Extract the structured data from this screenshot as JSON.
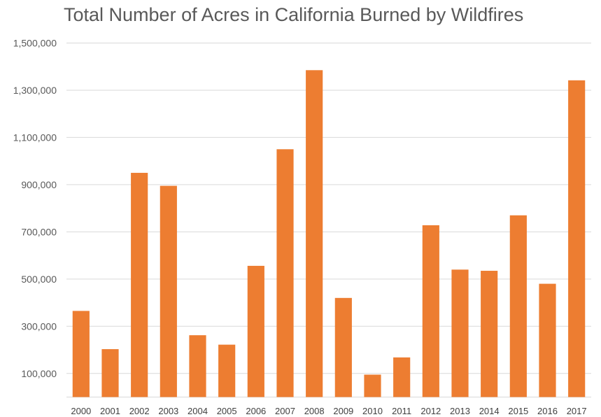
{
  "chart_data": {
    "type": "bar",
    "title": "Total Number of Acres in California Burned by Wildfires",
    "xlabel": "",
    "ylabel": "",
    "ylim": [
      0,
      1500000
    ],
    "y_ticks": [
      100000,
      300000,
      500000,
      700000,
      900000,
      1100000,
      1300000,
      1500000
    ],
    "y_tick_labels": [
      "100,000",
      "300,000",
      "500,000",
      "700,000",
      "900,000",
      "1,100,000",
      "1,300,000",
      "1,500,000"
    ],
    "grid": true,
    "legend": "none",
    "bar_color": "#ED7D31",
    "categories": [
      "2000",
      "2001",
      "2002",
      "2003",
      "2004",
      "2005",
      "2006",
      "2007",
      "2008",
      "2009",
      "2010",
      "2011",
      "2012",
      "2013",
      "2014",
      "2015",
      "2016",
      "2017"
    ],
    "values": [
      365000,
      203000,
      950000,
      895000,
      262000,
      222000,
      556000,
      1050000,
      1385000,
      420000,
      95000,
      168000,
      728000,
      540000,
      535000,
      770000,
      480000,
      1342000
    ]
  }
}
